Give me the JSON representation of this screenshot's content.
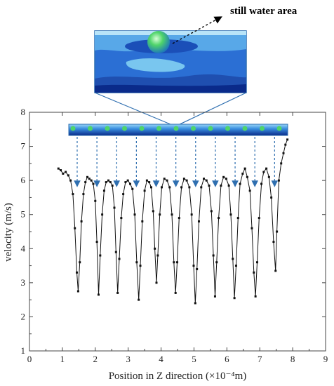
{
  "chart_data": {
    "type": "line",
    "xlabel": "Position in Z direction (×10⁻⁴m)",
    "ylabel": "velocity (m/s)",
    "xlim": [
      0,
      9
    ],
    "ylim": [
      1,
      8
    ],
    "xticks": [
      0,
      1,
      2,
      3,
      4,
      5,
      6,
      7,
      8,
      9
    ],
    "yticks": [
      1,
      2,
      3,
      4,
      5,
      6,
      7,
      8
    ],
    "grid": false,
    "annotations": [
      "still water area"
    ],
    "series": [
      {
        "marker": "square",
        "color": "#111111",
        "points": [
          [
            0.88,
            6.35
          ],
          [
            0.95,
            6.3
          ],
          [
            1.02,
            6.2
          ],
          [
            1.1,
            6.25
          ],
          [
            1.18,
            6.15
          ],
          [
            1.25,
            6.0
          ],
          [
            1.32,
            5.6
          ],
          [
            1.38,
            4.6
          ],
          [
            1.44,
            3.3
          ],
          [
            1.48,
            2.75
          ],
          [
            1.53,
            3.6
          ],
          [
            1.58,
            4.8
          ],
          [
            1.64,
            5.6
          ],
          [
            1.7,
            5.95
          ],
          [
            1.76,
            6.1
          ],
          [
            1.82,
            6.05
          ],
          [
            1.88,
            6.0
          ],
          [
            1.94,
            5.9
          ],
          [
            2.0,
            5.4
          ],
          [
            2.05,
            4.2
          ],
          [
            2.1,
            2.65
          ],
          [
            2.15,
            3.8
          ],
          [
            2.21,
            5.0
          ],
          [
            2.27,
            5.7
          ],
          [
            2.33,
            5.95
          ],
          [
            2.4,
            6.0
          ],
          [
            2.46,
            5.95
          ],
          [
            2.52,
            5.85
          ],
          [
            2.58,
            5.2
          ],
          [
            2.63,
            3.9
          ],
          [
            2.68,
            2.7
          ],
          [
            2.73,
            3.7
          ],
          [
            2.79,
            4.9
          ],
          [
            2.85,
            5.6
          ],
          [
            2.92,
            5.95
          ],
          [
            2.99,
            6.0
          ],
          [
            3.06,
            5.9
          ],
          [
            3.13,
            5.75
          ],
          [
            3.2,
            5.0
          ],
          [
            3.26,
            3.6
          ],
          [
            3.32,
            2.5
          ],
          [
            3.37,
            3.5
          ],
          [
            3.43,
            4.8
          ],
          [
            3.5,
            5.7
          ],
          [
            3.57,
            6.0
          ],
          [
            3.64,
            5.95
          ],
          [
            3.7,
            5.8
          ],
          [
            3.76,
            5.1
          ],
          [
            3.81,
            4.0
          ],
          [
            3.86,
            3.0
          ],
          [
            3.9,
            3.8
          ],
          [
            3.96,
            5.0
          ],
          [
            4.02,
            5.8
          ],
          [
            4.1,
            6.05
          ],
          [
            4.18,
            6.0
          ],
          [
            4.26,
            5.8
          ],
          [
            4.33,
            5.0
          ],
          [
            4.39,
            3.6
          ],
          [
            4.44,
            2.7
          ],
          [
            4.49,
            3.6
          ],
          [
            4.55,
            4.9
          ],
          [
            4.62,
            5.8
          ],
          [
            4.7,
            6.05
          ],
          [
            4.78,
            6.0
          ],
          [
            4.86,
            5.8
          ],
          [
            4.93,
            5.0
          ],
          [
            4.99,
            3.5
          ],
          [
            5.04,
            2.4
          ],
          [
            5.09,
            3.4
          ],
          [
            5.15,
            4.8
          ],
          [
            5.22,
            5.8
          ],
          [
            5.3,
            6.05
          ],
          [
            5.38,
            6.0
          ],
          [
            5.46,
            5.85
          ],
          [
            5.53,
            5.1
          ],
          [
            5.59,
            3.8
          ],
          [
            5.64,
            2.6
          ],
          [
            5.69,
            3.6
          ],
          [
            5.75,
            4.9
          ],
          [
            5.82,
            5.85
          ],
          [
            5.9,
            6.1
          ],
          [
            5.98,
            6.05
          ],
          [
            6.06,
            5.85
          ],
          [
            6.12,
            5.0
          ],
          [
            6.18,
            3.7
          ],
          [
            6.23,
            2.55
          ],
          [
            6.28,
            3.5
          ],
          [
            6.34,
            4.9
          ],
          [
            6.4,
            5.9
          ],
          [
            6.48,
            6.2
          ],
          [
            6.55,
            6.35
          ],
          [
            6.62,
            6.1
          ],
          [
            6.7,
            5.7
          ],
          [
            6.76,
            4.6
          ],
          [
            6.82,
            3.3
          ],
          [
            6.87,
            2.6
          ],
          [
            6.92,
            3.6
          ],
          [
            6.98,
            4.9
          ],
          [
            7.05,
            5.9
          ],
          [
            7.12,
            6.25
          ],
          [
            7.2,
            6.35
          ],
          [
            7.28,
            6.1
          ],
          [
            7.35,
            5.5
          ],
          [
            7.42,
            4.2
          ],
          [
            7.48,
            3.35
          ],
          [
            7.52,
            4.5
          ],
          [
            7.58,
            6.0
          ],
          [
            7.65,
            6.5
          ],
          [
            7.72,
            6.8
          ],
          [
            7.78,
            7.05
          ],
          [
            7.84,
            7.2
          ]
        ]
      }
    ]
  },
  "colors": {
    "line": "#111111",
    "arrow": "#2f6fb0",
    "inset_frame": "#2f6fb0",
    "water_dark": "#0a2a8a",
    "water_mid": "#2e6fd6",
    "water_light": "#58a8e8",
    "sphere": "#4fd46a"
  }
}
